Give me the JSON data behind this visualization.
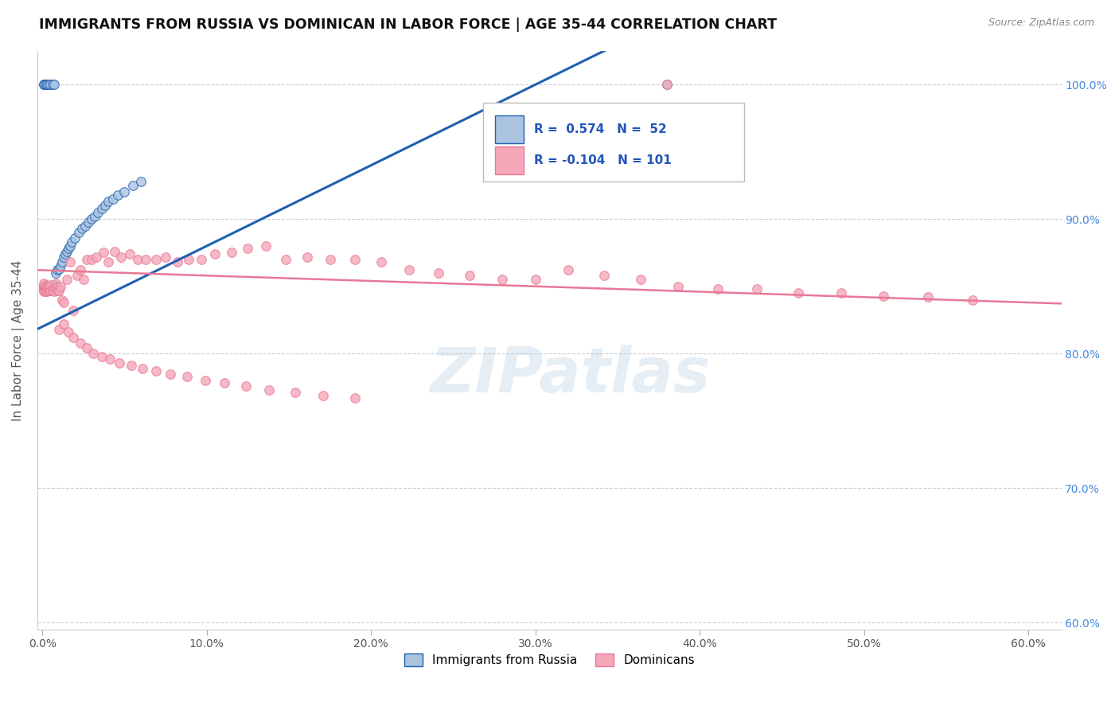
{
  "title": "IMMIGRANTS FROM RUSSIA VS DOMINICAN IN LABOR FORCE | AGE 35-44 CORRELATION CHART",
  "source": "Source: ZipAtlas.com",
  "ylabel": "In Labor Force | Age 35-44",
  "xlim": [
    -0.003,
    0.62
  ],
  "ylim": [
    0.595,
    1.025
  ],
  "xticks": [
    0.0,
    0.1,
    0.2,
    0.3,
    0.4,
    0.5,
    0.6
  ],
  "xticklabels": [
    "0.0%",
    "10.0%",
    "20.0%",
    "30.0%",
    "40.0%",
    "50.0%",
    "60.0%"
  ],
  "yticks": [
    0.6,
    0.7,
    0.8,
    0.9,
    1.0
  ],
  "yticklabels": [
    "60.0%",
    "70.0%",
    "80.0%",
    "90.0%",
    "100.0%"
  ],
  "russia_R": 0.574,
  "russia_N": 52,
  "dominican_R": -0.104,
  "dominican_N": 101,
  "russia_color": "#aac4e0",
  "dominican_color": "#f4a8b8",
  "russia_line_color": "#2060b0",
  "dominican_line_color": "#e87898",
  "watermark": "ZIPatlas",
  "legend_blue_label": "Immigrants from Russia",
  "legend_pink_label": "Dominicans",
  "russia_x": [
    0.001,
    0.001,
    0.001,
    0.002,
    0.002,
    0.002,
    0.002,
    0.003,
    0.003,
    0.003,
    0.003,
    0.004,
    0.004,
    0.004,
    0.005,
    0.005,
    0.005,
    0.006,
    0.006,
    0.007,
    0.007,
    0.008,
    0.008,
    0.009,
    0.009,
    0.01,
    0.01,
    0.011,
    0.012,
    0.013,
    0.014,
    0.015,
    0.016,
    0.017,
    0.018,
    0.02,
    0.022,
    0.024,
    0.026,
    0.028,
    0.03,
    0.032,
    0.034,
    0.036,
    0.038,
    0.04,
    0.043,
    0.046,
    0.05,
    0.055,
    0.06,
    0.38
  ],
  "russia_y": [
    1.0,
    1.0,
    0.85,
    1.0,
    1.0,
    0.848,
    0.849,
    1.0,
    1.0,
    0.85,
    0.849,
    1.0,
    0.848,
    0.847,
    1.0,
    0.85,
    0.849,
    1.0,
    0.85,
    1.0,
    0.851,
    0.86,
    0.848,
    0.862,
    0.848,
    0.863,
    0.848,
    0.865,
    0.868,
    0.872,
    0.874,
    0.876,
    0.878,
    0.88,
    0.883,
    0.886,
    0.89,
    0.893,
    0.895,
    0.898,
    0.9,
    0.902,
    0.905,
    0.908,
    0.91,
    0.913,
    0.915,
    0.918,
    0.92,
    0.925,
    0.928,
    1.0
  ],
  "dominican_x": [
    0.001,
    0.001,
    0.001,
    0.001,
    0.001,
    0.002,
    0.002,
    0.002,
    0.002,
    0.003,
    0.003,
    0.003,
    0.003,
    0.004,
    0.004,
    0.004,
    0.005,
    0.005,
    0.005,
    0.006,
    0.006,
    0.007,
    0.007,
    0.008,
    0.008,
    0.009,
    0.009,
    0.01,
    0.01,
    0.011,
    0.012,
    0.013,
    0.015,
    0.017,
    0.019,
    0.021,
    0.023,
    0.025,
    0.027,
    0.03,
    0.033,
    0.037,
    0.04,
    0.044,
    0.048,
    0.053,
    0.058,
    0.063,
    0.069,
    0.075,
    0.082,
    0.089,
    0.097,
    0.105,
    0.115,
    0.125,
    0.136,
    0.148,
    0.161,
    0.175,
    0.19,
    0.206,
    0.223,
    0.241,
    0.26,
    0.28,
    0.3,
    0.32,
    0.342,
    0.364,
    0.387,
    0.411,
    0.435,
    0.46,
    0.486,
    0.512,
    0.539,
    0.566,
    0.01,
    0.013,
    0.016,
    0.019,
    0.023,
    0.027,
    0.031,
    0.036,
    0.041,
    0.047,
    0.054,
    0.061,
    0.069,
    0.078,
    0.088,
    0.099,
    0.111,
    0.124,
    0.138,
    0.154,
    0.171,
    0.19,
    0.38
  ],
  "dominican_y": [
    0.848,
    0.85,
    0.847,
    0.852,
    0.846,
    0.849,
    0.847,
    0.851,
    0.846,
    0.85,
    0.848,
    0.846,
    0.849,
    0.848,
    0.847,
    0.85,
    0.849,
    0.847,
    0.851,
    0.848,
    0.847,
    0.849,
    0.846,
    0.848,
    0.852,
    0.847,
    0.849,
    0.848,
    0.847,
    0.85,
    0.84,
    0.838,
    0.855,
    0.868,
    0.832,
    0.858,
    0.862,
    0.855,
    0.87,
    0.87,
    0.872,
    0.875,
    0.868,
    0.876,
    0.872,
    0.874,
    0.87,
    0.87,
    0.87,
    0.872,
    0.868,
    0.87,
    0.87,
    0.874,
    0.875,
    0.878,
    0.88,
    0.87,
    0.872,
    0.87,
    0.87,
    0.868,
    0.862,
    0.86,
    0.858,
    0.855,
    0.855,
    0.862,
    0.858,
    0.855,
    0.85,
    0.848,
    0.848,
    0.845,
    0.845,
    0.843,
    0.842,
    0.84,
    0.818,
    0.822,
    0.816,
    0.812,
    0.808,
    0.804,
    0.8,
    0.798,
    0.796,
    0.793,
    0.791,
    0.789,
    0.787,
    0.785,
    0.783,
    0.78,
    0.778,
    0.776,
    0.773,
    0.771,
    0.769,
    0.767,
    1.0
  ]
}
